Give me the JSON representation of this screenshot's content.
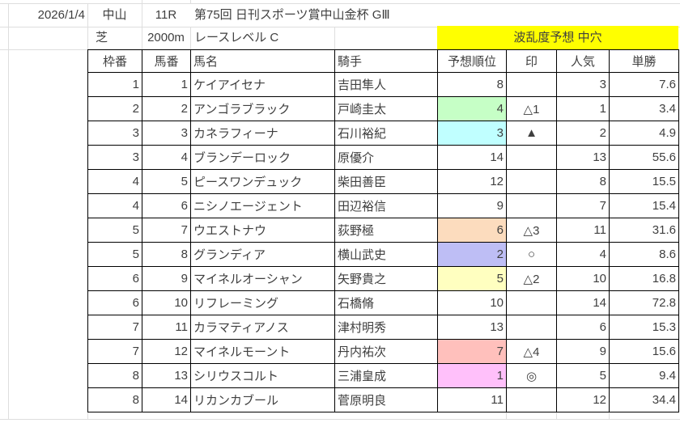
{
  "meta": {
    "date": "2026/1/4",
    "track": "中山",
    "race_no": "11R",
    "race_title": "第75回 日刊スポーツ賞中山金杯 GⅢ",
    "surface": "芝",
    "distance": "2000m",
    "race_level": "レースレベル C",
    "prediction_banner": "波乱度予想 中穴",
    "banner_bg": "#ffff00",
    "text_color": "#3f3f3f"
  },
  "table": {
    "headers": [
      "枠番",
      "馬番",
      "馬名",
      "騎手",
      "予想順位",
      "印",
      "人気",
      "単勝"
    ],
    "rows": [
      {
        "waku": "1",
        "uma": "1",
        "name": "ケイアイセナ",
        "jockey": "吉田隼人",
        "rank": "8",
        "mark": "",
        "pop": "3",
        "odds": "7.6",
        "rank_bg": ""
      },
      {
        "waku": "2",
        "uma": "2",
        "name": "アンゴラブラック",
        "jockey": "戸崎圭太",
        "rank": "4",
        "mark": "△1",
        "pop": "1",
        "odds": "3.4",
        "rank_bg": "#c6ffc6"
      },
      {
        "waku": "3",
        "uma": "3",
        "name": "カネラフィーナ",
        "jockey": "石川裕紀",
        "rank": "3",
        "mark": "▲",
        "pop": "2",
        "odds": "4.9",
        "rank_bg": "#c0ffff"
      },
      {
        "waku": "3",
        "uma": "4",
        "name": "ブランデーロック",
        "jockey": "原優介",
        "rank": "14",
        "mark": "",
        "pop": "13",
        "odds": "55.6",
        "rank_bg": ""
      },
      {
        "waku": "4",
        "uma": "5",
        "name": "ピースワンデュック",
        "jockey": "柴田善臣",
        "rank": "12",
        "mark": "",
        "pop": "8",
        "odds": "15.5",
        "rank_bg": ""
      },
      {
        "waku": "4",
        "uma": "6",
        "name": "ニシノエージェント",
        "jockey": "田辺裕信",
        "rank": "9",
        "mark": "",
        "pop": "7",
        "odds": "15.4",
        "rank_bg": ""
      },
      {
        "waku": "5",
        "uma": "7",
        "name": "ウエストナウ",
        "jockey": "荻野極",
        "rank": "6",
        "mark": "△3",
        "pop": "11",
        "odds": "31.6",
        "rank_bg": "#fcdcbe"
      },
      {
        "waku": "5",
        "uma": "8",
        "name": "グランディア",
        "jockey": "横山武史",
        "rank": "2",
        "mark": "○",
        "pop": "4",
        "odds": "8.6",
        "rank_bg": "#bebef5"
      },
      {
        "waku": "6",
        "uma": "9",
        "name": "マイネルオーシャン",
        "jockey": "矢野貴之",
        "rank": "5",
        "mark": "△2",
        "pop": "10",
        "odds": "16.8",
        "rank_bg": "#ffffc0"
      },
      {
        "waku": "6",
        "uma": "10",
        "name": "リフレーミング",
        "jockey": "石橋脩",
        "rank": "10",
        "mark": "",
        "pop": "14",
        "odds": "72.8",
        "rank_bg": ""
      },
      {
        "waku": "7",
        "uma": "11",
        "name": "カラマティアノス",
        "jockey": "津村明秀",
        "rank": "13",
        "mark": "",
        "pop": "6",
        "odds": "15.3",
        "rank_bg": ""
      },
      {
        "waku": "7",
        "uma": "12",
        "name": "マイネルモーント",
        "jockey": "丹内祐次",
        "rank": "7",
        "mark": "△4",
        "pop": "9",
        "odds": "15.6",
        "rank_bg": "#ffc0bc"
      },
      {
        "waku": "8",
        "uma": "13",
        "name": "シリウスコルト",
        "jockey": "三浦皇成",
        "rank": "1",
        "mark": "◎",
        "pop": "5",
        "odds": "9.4",
        "rank_bg": "#ffc0fa"
      },
      {
        "waku": "8",
        "uma": "14",
        "name": "リカンカブール",
        "jockey": "菅原明良",
        "rank": "11",
        "mark": "",
        "pop": "12",
        "odds": "34.4",
        "rank_bg": ""
      }
    ]
  }
}
